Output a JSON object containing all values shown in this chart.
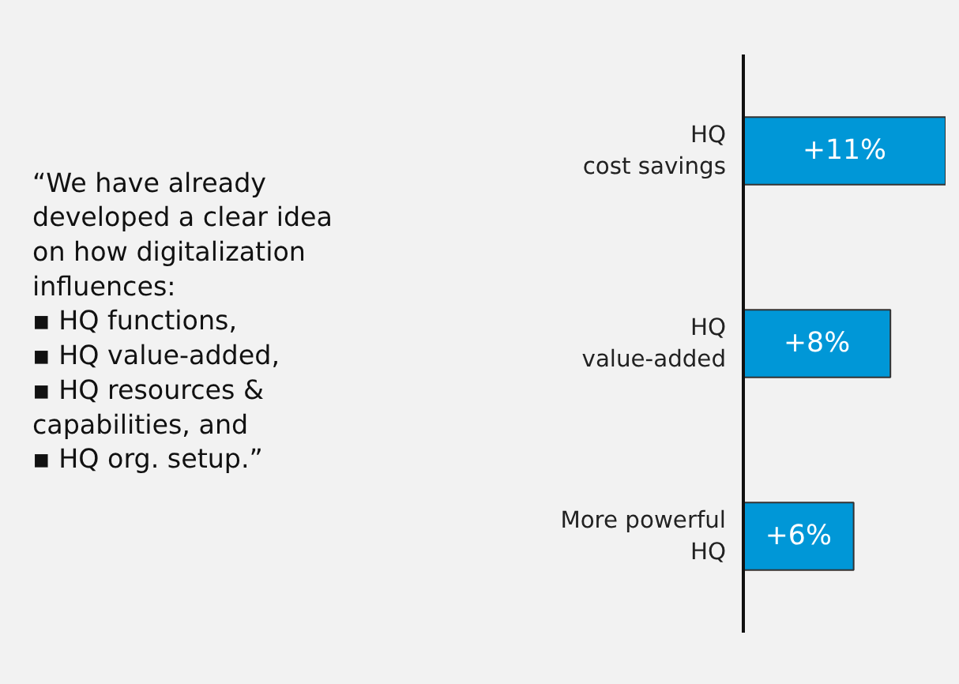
{
  "chart_data": {
    "type": "bar",
    "orientation": "horizontal",
    "categories": [
      "HQ\ncost savings",
      "HQ\nvalue-added",
      "More powerful\nHQ"
    ],
    "values": [
      11,
      8,
      6
    ],
    "value_labels": [
      "+11%",
      "+8%",
      "+6%"
    ],
    "color": "#0097d7",
    "grid": false,
    "annotations": [
      "“We have already developed a clear idea on how digitalization influences:\n▪ HQ functions,\n▪ HQ value-added,\n▪ HQ resources & capabilities, and\n▪ HQ org. setup.”"
    ]
  }
}
